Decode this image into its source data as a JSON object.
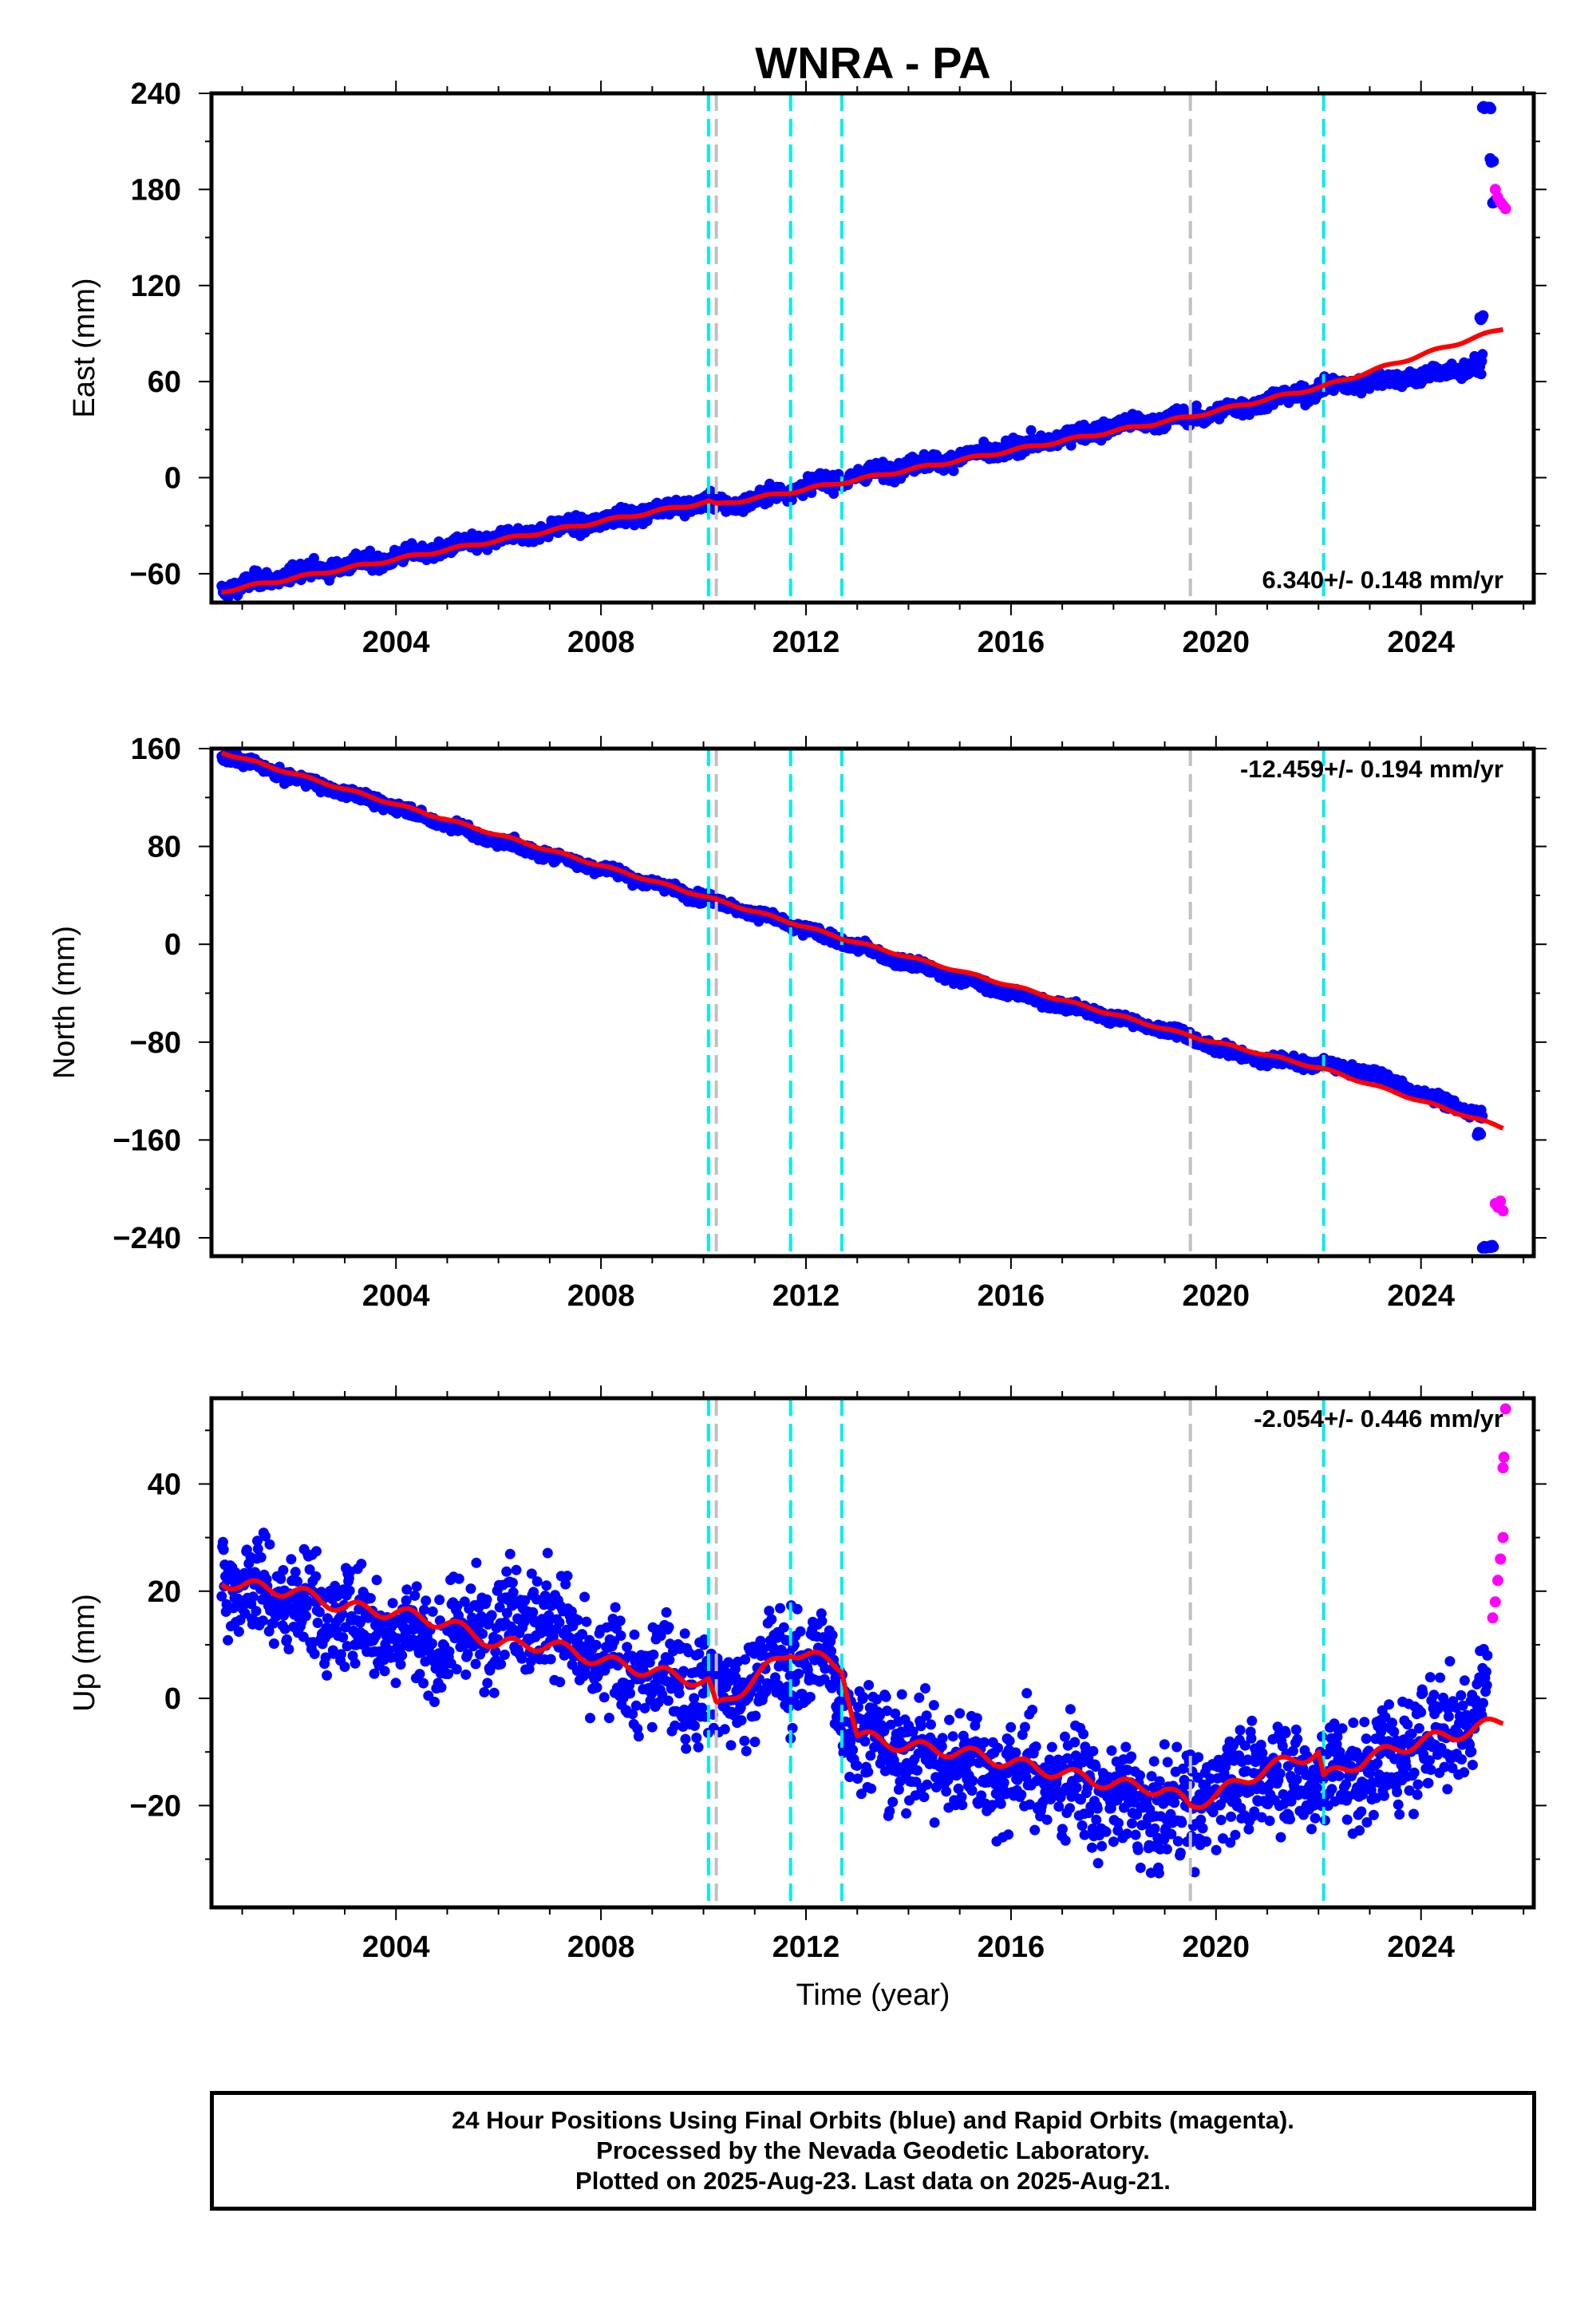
{
  "title": "WNRA - PA",
  "footer": {
    "line1": "24 Hour Positions Using Final Orbits (blue) and Rapid Orbits (magenta).",
    "line2": "Processed by the Nevada Geodetic Laboratory.",
    "line3": "Plotted on 2025-Aug-23. Last data on 2025-Aug-21."
  },
  "colors": {
    "final_orbits": "#0000ff",
    "rapid_orbits": "#ff00ff",
    "model": "#ff0000",
    "event_cyan": "#00eeee",
    "event_gray": "#c0c0c0"
  },
  "chart_data": [
    {
      "type": "scatter",
      "ylabel": "East (mm)",
      "xlim": [
        2000.4,
        2026.2
      ],
      "ylim": [
        -78,
        240
      ],
      "yticks": [
        -60,
        0,
        60,
        120,
        180,
        240
      ],
      "xticks": [
        2004,
        2008,
        2012,
        2016,
        2020,
        2024
      ],
      "rate_label": "6.340+/- 0.148 mm/yr",
      "rate_position": "bottom-right",
      "events_cyan": [
        2010.1,
        2011.7,
        2012.7,
        2022.1
      ],
      "events_gray": [
        2010.25,
        2019.5
      ],
      "final_orbits": {
        "x": [
          2000.6,
          2002,
          2004,
          2006,
          2008,
          2010,
          2010.5,
          2012,
          2014,
          2016,
          2018,
          2019.5,
          2020,
          2021,
          2022,
          2023,
          2024,
          2025.2
        ],
        "y": [
          -70,
          -60,
          -50,
          -38,
          -27,
          -15,
          -18,
          -5,
          7,
          18,
          32,
          38,
          40,
          48,
          55,
          60,
          63,
          70
        ],
        "noise": 3.5
      },
      "final_orbits_outliers": {
        "x": [
          2025.15,
          2025.2,
          2025.3,
          2025.35,
          2025.4
        ],
        "y": [
          100,
          231,
          231,
          198,
          172
        ]
      },
      "rapid_orbits": {
        "x": [
          2025.45,
          2025.5,
          2025.55,
          2025.6,
          2025.65
        ],
        "y": [
          180,
          175,
          172,
          170,
          168
        ]
      },
      "model": {
        "x": [
          2000.6,
          2010.1,
          2010.25,
          2011.7,
          2012.7,
          2019.5,
          2022.1,
          2025.6
        ],
        "y": [
          -71,
          -15,
          -17,
          -9,
          -3,
          38,
          57,
          93
        ]
      }
    },
    {
      "type": "scatter",
      "ylabel": "North (mm)",
      "xlim": [
        2000.4,
        2026.2
      ],
      "ylim": [
        -255,
        160
      ],
      "yticks": [
        -240,
        -160,
        -80,
        0,
        80,
        160
      ],
      "xticks": [
        2004,
        2008,
        2012,
        2016,
        2020,
        2024
      ],
      "rate_label": "-12.459+/- 0.194 mm/yr",
      "rate_position": "top-right",
      "events_cyan": [
        2010.1,
        2011.7,
        2012.7,
        2022.1
      ],
      "events_gray": [
        2010.25,
        2019.5
      ],
      "final_orbits": {
        "x": [
          2000.6,
          2002,
          2004,
          2006,
          2008,
          2010,
          2012,
          2014,
          2016,
          2018,
          2019.5,
          2020,
          2021,
          2022,
          2023,
          2024,
          2025.2
        ],
        "y": [
          155,
          136,
          112,
          84,
          62,
          38,
          12,
          -16,
          -40,
          -60,
          -75,
          -85,
          -95,
          -98,
          -105,
          -122,
          -140
        ],
        "noise": 3.0
      },
      "final_orbits_outliers": {
        "x": [
          2025.1,
          2025.2,
          2025.3,
          2025.35
        ],
        "y": [
          -155,
          -247,
          -247,
          -247
        ]
      },
      "rapid_orbits": {
        "x": [
          2025.45,
          2025.5,
          2025.55,
          2025.6
        ],
        "y": [
          -212,
          -215,
          -210,
          -218
        ]
      },
      "model": {
        "x": [
          2000.6,
          2010.1,
          2011.7,
          2012.7,
          2019.5,
          2022.1,
          2025.6
        ],
        "y": [
          157,
          38,
          18,
          5,
          -75,
          -102,
          -150
        ]
      }
    },
    {
      "type": "scatter",
      "xlabel": "Time (year)",
      "ylabel": "Up (mm)",
      "xlim": [
        2000.4,
        2026.2
      ],
      "ylim": [
        -39,
        56
      ],
      "yticks": [
        -20,
        0,
        20,
        40
      ],
      "xticks": [
        2004,
        2008,
        2012,
        2016,
        2020,
        2024
      ],
      "rate_label": "-2.054+/- 0.446 mm/yr",
      "rate_position": "top-right",
      "events_cyan": [
        2010.1,
        2011.7,
        2012.7,
        2022.1
      ],
      "events_gray": [
        2010.25,
        2019.5
      ],
      "final_orbits": {
        "x": [
          2000.6,
          2002,
          2003,
          2004,
          2005,
          2006,
          2007,
          2008,
          2009,
          2010,
          2010.5,
          2011.5,
          2012.5,
          2013,
          2014,
          2015,
          2016,
          2017,
          2018,
          2019,
          2020,
          2021,
          2022,
          2023,
          2024,
          2025,
          2025.3
        ],
        "y": [
          22,
          18,
          15,
          13,
          10,
          16,
          15,
          5,
          4,
          3,
          0,
          7,
          6,
          -7,
          -10,
          -12,
          -14,
          -15,
          -19,
          -22,
          -17,
          -14,
          -15,
          -13,
          -8,
          -3,
          2
        ],
        "noise": 7
      },
      "final_orbits_outliers": {
        "x": [],
        "y": []
      },
      "rapid_orbits": {
        "x": [
          2025.4,
          2025.45,
          2025.5,
          2025.55,
          2025.6,
          2025.6,
          2025.62,
          2025.65
        ],
        "y": [
          15,
          18,
          22,
          26,
          30,
          43,
          45,
          54
        ]
      },
      "model": {
        "x": [
          2000.6,
          2001,
          2002,
          2003,
          2004,
          2005,
          2006,
          2007,
          2008,
          2009,
          2010.1,
          2010.25,
          2011.7,
          2012.7,
          2013,
          2014,
          2015,
          2016,
          2017,
          2018,
          2019,
          2019.5,
          2020,
          2021,
          2022,
          2022.1,
          2023,
          2024,
          2025,
          2025.6
        ],
        "y": [
          22,
          21,
          20,
          17,
          16,
          14,
          10,
          10,
          7,
          5,
          3,
          -2,
          9,
          6,
          -7,
          -9,
          -10,
          -12,
          -14,
          -16,
          -17,
          -20,
          -18,
          -13,
          -10,
          -15,
          -11,
          -8,
          -6,
          -4
        ]
      },
      "seasonal_amplitude": 2
    }
  ]
}
